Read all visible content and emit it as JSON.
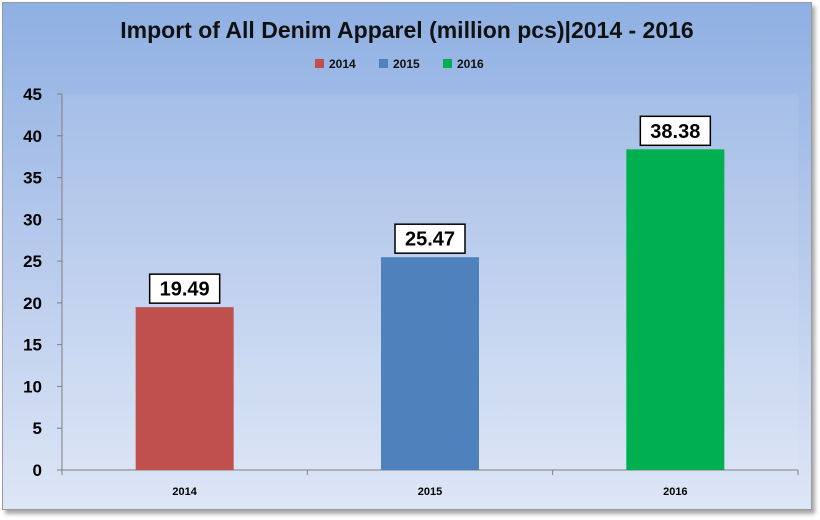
{
  "chart_data": {
    "type": "bar",
    "title": "Import of All Denim Apparel (million pcs)|2014 - 2016",
    "categories": [
      "2014",
      "2015",
      "2016"
    ],
    "series": [
      {
        "name": "2014",
        "values": [
          19.49,
          null,
          null
        ]
      },
      {
        "name": "2015",
        "values": [
          null,
          25.47,
          null
        ]
      },
      {
        "name": "2016",
        "values": [
          null,
          null,
          38.38
        ]
      }
    ],
    "values": [
      19.49,
      25.47,
      38.38
    ],
    "data_labels": [
      "19.49",
      "25.47",
      "38.38"
    ],
    "colors": [
      "#c0504d",
      "#4f81bd",
      "#00b050"
    ],
    "ylim": [
      0,
      45
    ],
    "yticks": [
      "0",
      "5",
      "10",
      "15",
      "20",
      "25",
      "30",
      "35",
      "40",
      "45"
    ],
    "legend": {
      "position": "top",
      "entries": [
        "2014",
        "2015",
        "2016"
      ]
    },
    "grid": false,
    "xlabel": "",
    "ylabel": ""
  }
}
